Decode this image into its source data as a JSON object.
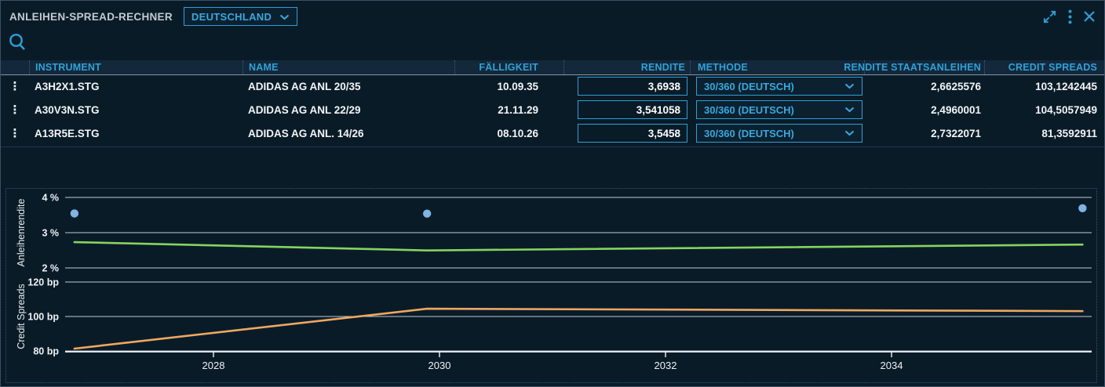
{
  "titlebar": {
    "title": "ANLEIHEN-SPREAD-RECHNER",
    "country_selector": {
      "value": "DEUTSCHLAND"
    }
  },
  "icons": {
    "search": "search-icon",
    "expand": "expand-icon",
    "menu": "kebab-menu-icon",
    "close": "close-icon",
    "chevron": "chevron-down-icon",
    "row_menu_glyph": "⋮"
  },
  "colors": {
    "background": "#0a1b28",
    "accent_cyan": "#2e9fd6",
    "header_bg": "#13283a",
    "text_white": "#f2f5f7",
    "series_green": "#86d45f",
    "series_orange": "#eda85f",
    "series_blue_dot": "#7fb2e5"
  },
  "table": {
    "columns": [
      "INSTRUMENT",
      "NAME",
      "FÄLLIGKEIT",
      "RENDITE",
      "METHODE",
      "RENDITE STAATSANLEIHEN",
      "CREDIT SPREADS"
    ],
    "rows": [
      {
        "instrument": "A3H2X1.STG",
        "name": "ADIDAS AG ANL 20/35",
        "faelligkeit": "10.09.35",
        "rendite": "3,6938",
        "methode": "30/360 (DEUTSCH)",
        "rendite_staatsanleihen": "2,6625576",
        "credit_spreads": "103,1242445"
      },
      {
        "instrument": "A30V3N.STG",
        "name": "ADIDAS AG ANL 22/29",
        "faelligkeit": "21.11.29",
        "rendite": "3,541058",
        "methode": "30/360 (DEUTSCH)",
        "rendite_staatsanleihen": "2,4960001",
        "credit_spreads": "104,5057949"
      },
      {
        "instrument": "A13R5E.STG",
        "name": "ADIDAS AG ANL. 14/26",
        "faelligkeit": "08.10.26",
        "rendite": "3,5458",
        "methode": "30/360 (DEUTSCH)",
        "rendite_staatsanleihen": "2,7322071",
        "credit_spreads": "81,3592911"
      }
    ]
  },
  "chart_data": {
    "type": "line",
    "x_axis": {
      "ticks": [
        2028,
        2030,
        2032,
        2034
      ],
      "range": [
        2026.69,
        2035.77
      ],
      "grid": "horizontal-only"
    },
    "points_x_years": [
      2026.77,
      2029.89,
      2035.69
    ],
    "points_x_dates": [
      "08.10.26",
      "21.11.29",
      "10.09.35"
    ],
    "legend": "none",
    "panels": [
      {
        "ylabel": "Anleihenrendite",
        "y_ticks": [
          {
            "value": 4,
            "label": "4 %"
          },
          {
            "value": 3,
            "label": "3 %"
          },
          {
            "value": 2,
            "label": "2 %"
          }
        ],
        "ylim": [
          2,
          4
        ],
        "series": [
          {
            "name": "Rendite",
            "type": "scatter",
            "color": "#7fb2e5",
            "values": [
              3.5458,
              3.541058,
              3.6938
            ]
          },
          {
            "name": "Rendite Staatsanleihen",
            "type": "line",
            "color": "#86d45f",
            "values": [
              2.7322071,
              2.4960001,
              2.6625576
            ]
          }
        ]
      },
      {
        "ylabel": "Credit Spreads",
        "y_ticks": [
          {
            "value": 120,
            "label": "120 bp"
          },
          {
            "value": 100,
            "label": "100 bp"
          },
          {
            "value": 80,
            "label": "80 bp"
          }
        ],
        "ylim": [
          80,
          120
        ],
        "series": [
          {
            "name": "Credit Spreads",
            "type": "line",
            "color": "#eda85f",
            "values": [
              81.3592911,
              104.5057949,
              103.1242445
            ]
          }
        ]
      }
    ]
  }
}
